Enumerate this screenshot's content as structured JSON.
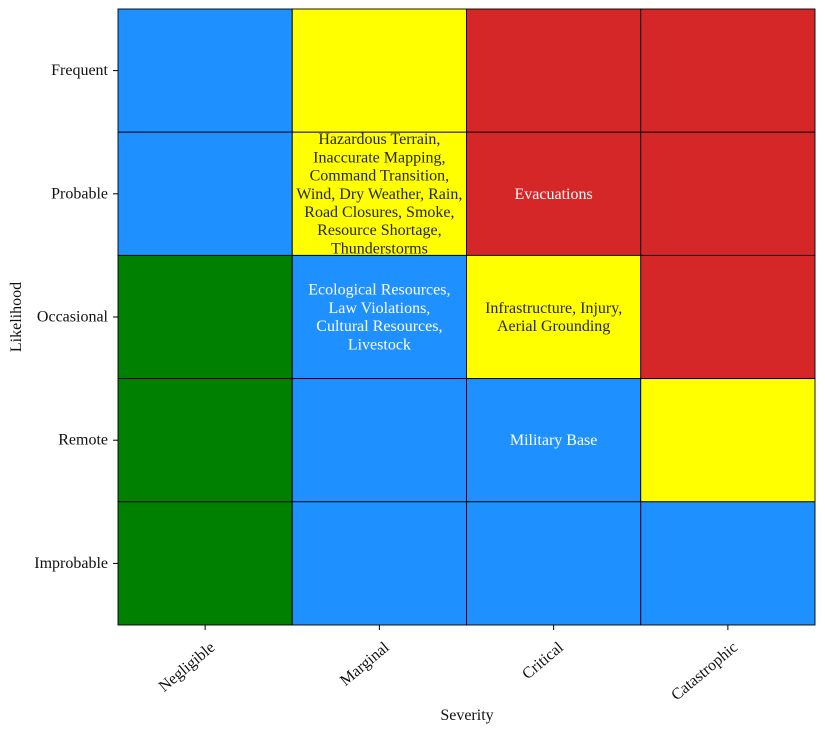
{
  "chart_data": {
    "type": "heatmap",
    "title": "",
    "xlabel": "Severity",
    "ylabel": "Likelihood",
    "x_categories": [
      "Negligible",
      "Marginal",
      "Critical",
      "Catastrophic"
    ],
    "y_categories": [
      "Frequent",
      "Probable",
      "Occasional",
      "Remote",
      "Improbable"
    ],
    "palette": {
      "green": "#008000",
      "blue": "#1e90ff",
      "yellow": "#ffff00",
      "red": "#d62728"
    },
    "cell_colors": [
      [
        "blue",
        "yellow",
        "red",
        "red"
      ],
      [
        "blue",
        "yellow",
        "red",
        "red"
      ],
      [
        "green",
        "blue",
        "yellow",
        "red"
      ],
      [
        "green",
        "blue",
        "blue",
        "yellow"
      ],
      [
        "green",
        "blue",
        "blue",
        "blue"
      ]
    ],
    "cell_labels": [
      [
        [],
        [],
        [],
        []
      ],
      [
        [],
        [
          "Hazardous Terrain,",
          "Inaccurate Mapping,",
          "Command Transition,",
          "Wind, Dry Weather, Rain,",
          "Road Closures, Smoke,",
          "Resource Shortage,",
          "Thunderstorms"
        ],
        [
          "Evacuations"
        ],
        []
      ],
      [
        [],
        [
          "Ecological Resources,",
          "Law Violations,",
          "Cultural Resources,",
          "Livestock"
        ],
        [
          "Infrastructure, Injury,",
          "Aerial Grounding"
        ],
        []
      ],
      [
        [],
        [],
        [
          "Military Base"
        ],
        []
      ],
      [
        [],
        [],
        [],
        []
      ]
    ],
    "grid": true,
    "legend": "none"
  }
}
